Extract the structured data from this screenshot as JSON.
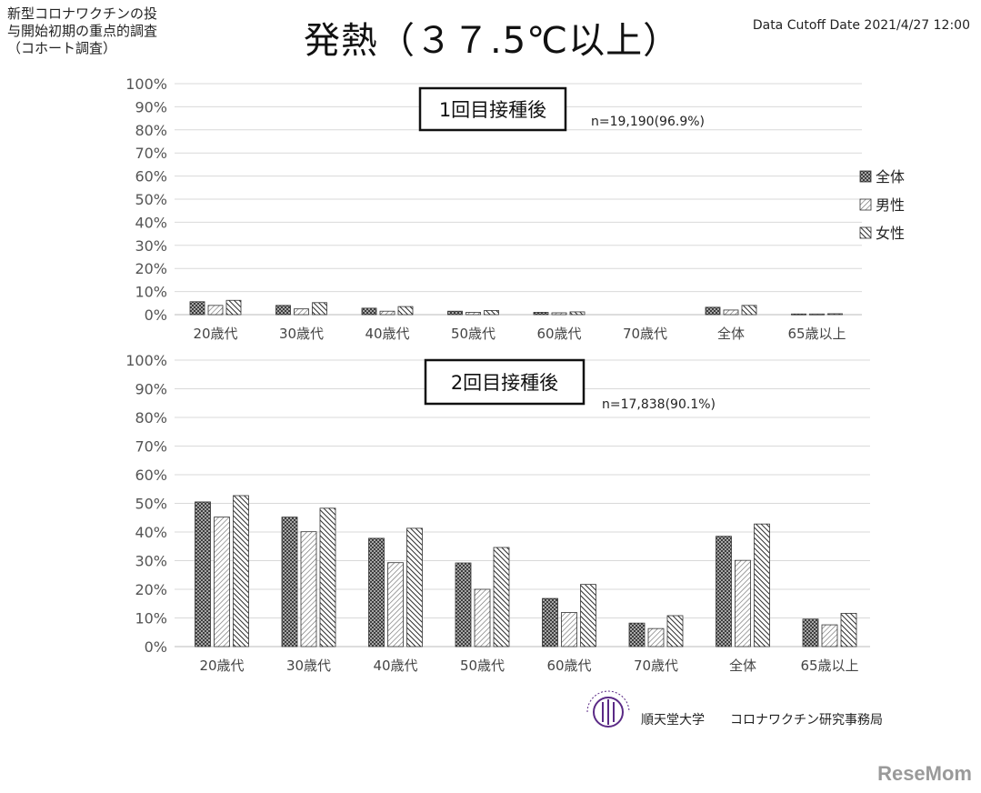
{
  "header": {
    "subtitle_lines": [
      "新型コロナワクチンの投",
      "与開始初期の重点的調査",
      "（コホート調査）"
    ],
    "title": "発熱（３７.5℃以上）",
    "cutoff": "Data Cutoff Date 2021/4/27 12:00"
  },
  "chart_data": [
    {
      "type": "bar",
      "title": "1回目接種後",
      "annotation": "n=19,190(96.9%)",
      "categories": [
        "20歳代",
        "30歳代",
        "40歳代",
        "50歳代",
        "60歳代",
        "70歳代",
        "全体",
        "65歳以上"
      ],
      "series": [
        {
          "name": "全体",
          "values": [
            5.6,
            4.0,
            2.8,
            1.5,
            1.0,
            0.0,
            3.2,
            0.3
          ]
        },
        {
          "name": "男性",
          "values": [
            4.0,
            2.5,
            1.5,
            1.0,
            0.8,
            0.0,
            2.0,
            0.3
          ]
        },
        {
          "name": "女性",
          "values": [
            6.2,
            5.2,
            3.5,
            1.8,
            1.2,
            0.0,
            4.0,
            0.4
          ]
        }
      ],
      "ylim": [
        0,
        100
      ],
      "yticks": [
        "0%",
        "10%",
        "20%",
        "30%",
        "40%",
        "50%",
        "60%",
        "70%",
        "80%",
        "90%",
        "100%"
      ],
      "grid": true,
      "legend_position": "right"
    },
    {
      "type": "bar",
      "title": "2回目接種後",
      "annotation": "n=17,838(90.1%)",
      "categories": [
        "20歳代",
        "30歳代",
        "40歳代",
        "50歳代",
        "60歳代",
        "70歳代",
        "全体",
        "65歳以上"
      ],
      "series": [
        {
          "name": "全体",
          "values": [
            50.5,
            45.2,
            37.8,
            29.2,
            16.8,
            8.2,
            38.5,
            9.6
          ]
        },
        {
          "name": "男性",
          "values": [
            45.2,
            40.1,
            29.3,
            20.0,
            11.9,
            6.3,
            30.1,
            7.6
          ]
        },
        {
          "name": "女性",
          "values": [
            52.7,
            48.3,
            41.3,
            34.6,
            21.7,
            10.8,
            42.8,
            11.6
          ]
        }
      ],
      "ylim": [
        0,
        100
      ],
      "yticks": [
        "0%",
        "10%",
        "20%",
        "30%",
        "40%",
        "50%",
        "60%",
        "70%",
        "80%",
        "90%",
        "100%"
      ],
      "grid": true
    }
  ],
  "legend": [
    {
      "label": "全体",
      "pattern": "dots"
    },
    {
      "label": "男性",
      "pattern": "light-diagonal"
    },
    {
      "label": "女性",
      "pattern": "dark-diagonal"
    }
  ],
  "footer": {
    "org": "順天堂大学",
    "office": "コロナワクチン研究事務局",
    "seal_text": "JUNTENDO UNIVERSITY",
    "watermark": "ReseMom"
  }
}
